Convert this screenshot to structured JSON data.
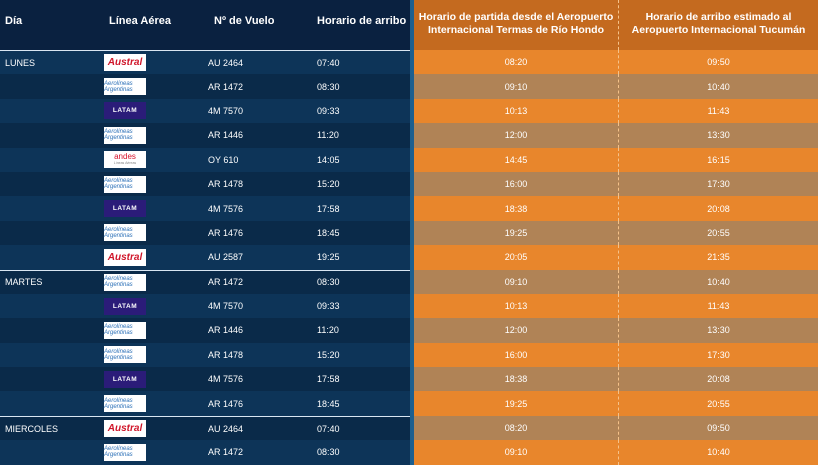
{
  "header": {
    "day": "Día",
    "airline": "Línea Aérea",
    "flight": "Nº de Vuelo",
    "arrival": "Horario de arribo",
    "departure": "Horario de partida desde el Aeropuerto Internacional Termas de Río Hondo",
    "estimated": "Horario de arribo estimado al Aeropuerto Internacional Tucumán"
  },
  "logos": {
    "austral": "Austral",
    "aerolineas": "Aerolíneas Argentinas",
    "latam": "LATAM",
    "andes": "andes",
    "andes_sub": "Líneas Aéreas"
  },
  "rows": [
    {
      "day": "LUNES",
      "airline": "austral",
      "flight": "AU 2464",
      "arrive": "07:40",
      "depart": "08:20",
      "est": "09:50"
    },
    {
      "day": "",
      "airline": "aerolineas",
      "flight": "AR 1472",
      "arrive": "08:30",
      "depart": "09:10",
      "est": "10:40"
    },
    {
      "day": "",
      "airline": "latam",
      "flight": "4M 7570",
      "arrive": "09:33",
      "depart": "10:13",
      "est": "11:43"
    },
    {
      "day": "",
      "airline": "aerolineas",
      "flight": "AR 1446",
      "arrive": "11:20",
      "depart": "12:00",
      "est": "13:30"
    },
    {
      "day": "",
      "airline": "andes",
      "flight": "OY 610",
      "arrive": "14:05",
      "depart": "14:45",
      "est": "16:15"
    },
    {
      "day": "",
      "airline": "aerolineas",
      "flight": "AR 1478",
      "arrive": "15:20",
      "depart": "16:00",
      "est": "17:30"
    },
    {
      "day": "",
      "airline": "latam",
      "flight": "4M 7576",
      "arrive": "17:58",
      "depart": "18:38",
      "est": "20:08"
    },
    {
      "day": "",
      "airline": "aerolineas",
      "flight": "AR 1476",
      "arrive": "18:45",
      "depart": "19:25",
      "est": "20:55"
    },
    {
      "day": "",
      "airline": "austral",
      "flight": "AU 2587",
      "arrive": "19:25",
      "depart": "20:05",
      "est": "21:35"
    },
    {
      "day": "MARTES",
      "airline": "aerolineas",
      "flight": "AR 1472",
      "arrive": "08:30",
      "depart": "09:10",
      "est": "10:40"
    },
    {
      "day": "",
      "airline": "latam",
      "flight": "4M 7570",
      "arrive": "09:33",
      "depart": "10:13",
      "est": "11:43"
    },
    {
      "day": "",
      "airline": "aerolineas",
      "flight": "AR 1446",
      "arrive": "11:20",
      "depart": "12:00",
      "est": "13:30"
    },
    {
      "day": "",
      "airline": "aerolineas",
      "flight": "AR 1478",
      "arrive": "15:20",
      "depart": "16:00",
      "est": "17:30"
    },
    {
      "day": "",
      "airline": "latam",
      "flight": "4M 7576",
      "arrive": "17:58",
      "depart": "18:38",
      "est": "20:08"
    },
    {
      "day": "",
      "airline": "aerolineas",
      "flight": "AR 1476",
      "arrive": "18:45",
      "depart": "19:25",
      "est": "20:55"
    },
    {
      "day": "MIERCOLES",
      "airline": "austral",
      "flight": "AU 2464",
      "arrive": "07:40",
      "depart": "08:20",
      "est": "09:50"
    },
    {
      "day": "",
      "airline": "aerolineas",
      "flight": "AR 1472",
      "arrive": "08:30",
      "depart": "09:10",
      "est": "10:40"
    }
  ]
}
